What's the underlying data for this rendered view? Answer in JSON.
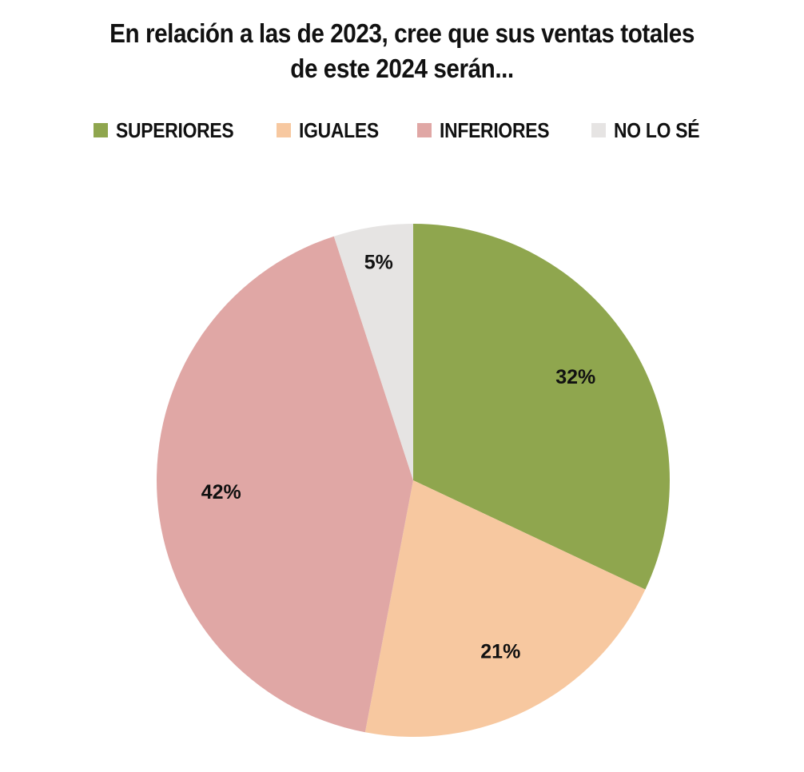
{
  "chart_data": {
    "type": "pie",
    "title_lines": [
      "En relación a las de 2023, cree que sus ventas totales",
      "de este 2024 serán..."
    ],
    "categories": [
      "SUPERIORES",
      "IGUALES",
      "INFERIORES",
      "NO LO SÉ"
    ],
    "values": [
      32,
      21,
      42,
      5
    ],
    "data_labels": [
      "32%",
      "21%",
      "42%",
      "5%"
    ],
    "colors": [
      "#8FA64E",
      "#F7C8A0",
      "#E0A7A5",
      "#E6E4E3"
    ],
    "legend_position": "top",
    "start_angle": "12 o'clock",
    "direction": "clockwise"
  }
}
